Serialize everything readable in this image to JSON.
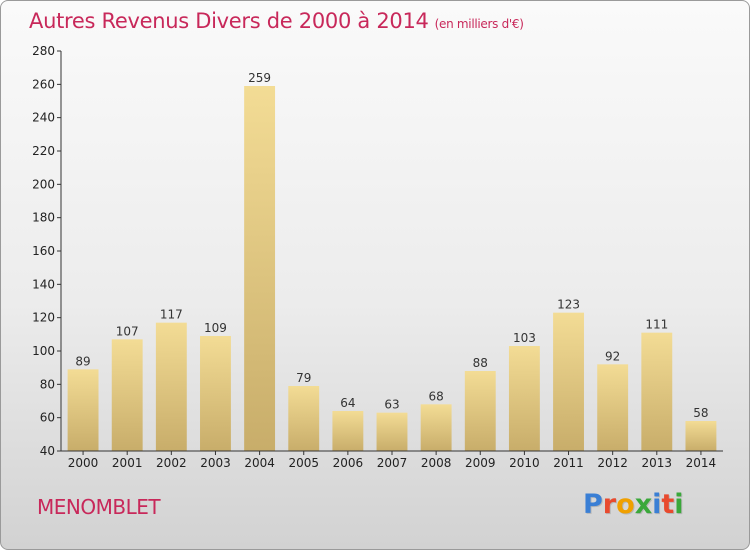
{
  "header": {
    "title": "Autres Revenus Divers de 2000 à 2014",
    "unit": "(en milliers d'€)"
  },
  "footer": {
    "commune": "MENOMBLET",
    "logo": "Proxiti"
  },
  "colors": {
    "title": "#c8285a",
    "bar_top": "#f3dc95",
    "bar_bottom": "#c8ad6a",
    "logo_letters": [
      "#3a7fd5",
      "#e84a2e",
      "#f0a000",
      "#3aa83a",
      "#3a7fd5",
      "#e84a2e",
      "#3aa83a"
    ]
  },
  "chart_data": {
    "type": "bar",
    "title": "Autres Revenus Divers de 2000 à 2014",
    "subtitle": "(en milliers d'€)",
    "categories": [
      "2000",
      "2001",
      "2002",
      "2003",
      "2004",
      "2005",
      "2006",
      "2007",
      "2008",
      "2009",
      "2010",
      "2011",
      "2012",
      "2013",
      "2014"
    ],
    "values": [
      89,
      107,
      117,
      109,
      259,
      79,
      64,
      63,
      68,
      88,
      103,
      123,
      92,
      111,
      58
    ],
    "ylim": [
      40,
      280
    ],
    "yticks": [
      40,
      60,
      80,
      100,
      120,
      140,
      160,
      180,
      200,
      220,
      240,
      260,
      280
    ],
    "grid": false,
    "xlabel": "",
    "ylabel": ""
  }
}
